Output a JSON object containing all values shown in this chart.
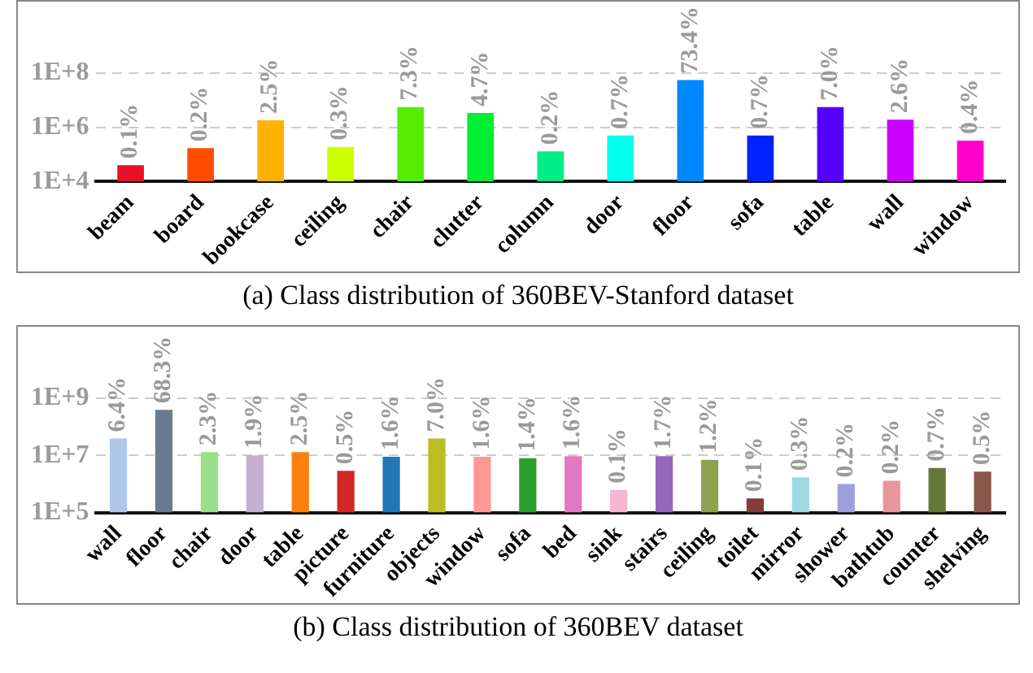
{
  "chart_data": [
    {
      "type": "bar",
      "title": "(a) Class distribution of 360BEV-Stanford dataset",
      "categories": [
        "beam",
        "board",
        "bookcase",
        "ceiling",
        "chair",
        "clutter",
        "column",
        "door",
        "floor",
        "sofa",
        "table",
        "wall",
        "window"
      ],
      "values": [
        40000,
        170000,
        1800000,
        190000,
        5600000,
        3400000,
        130000,
        500000,
        56000000,
        500000,
        5600000,
        1900000,
        320000
      ],
      "colors": [
        "#e8102a",
        "#ff4d00",
        "#ffb300",
        "#ccff00",
        "#55ee00",
        "#00ee33",
        "#00ee88",
        "#00ffee",
        "#0088ff",
        "#0022ff",
        "#5500ff",
        "#cc00ff",
        "#ff00cc"
      ],
      "annotations": [
        {
          "text": "0.1%",
          "x": "beam",
          "y": 40000
        },
        {
          "text": "0.2%",
          "x": "board",
          "y": 170000
        },
        {
          "text": "2.5%",
          "x": "bookcase",
          "y": 1800000
        },
        {
          "text": "0.3%",
          "x": "ceiling",
          "y": 190000
        },
        {
          "text": "7.3%",
          "x": "chair",
          "y": 5600000
        },
        {
          "text": "4.7%",
          "x": "clutter",
          "y": 3400000
        },
        {
          "text": "0.2%",
          "x": "column",
          "y": 130000
        },
        {
          "text": "0.7%",
          "x": "door",
          "y": 500000
        },
        {
          "text": "73.4%",
          "x": "floor",
          "y": 56000000
        },
        {
          "text": "0.7%",
          "x": "sofa",
          "y": 500000
        },
        {
          "text": "7.0%",
          "x": "table",
          "y": 5600000
        },
        {
          "text": "2.6%",
          "x": "wall",
          "y": 1900000
        },
        {
          "text": "0.4%",
          "x": "window",
          "y": 320000
        }
      ],
      "log": "y",
      "ylim": [
        10000,
        100000000
      ],
      "yticks": [
        {
          "value": 10000,
          "label": "1E+4"
        },
        {
          "value": 1000000,
          "label": "1E+6"
        },
        {
          "value": 100000000,
          "label": "1E+8"
        }
      ],
      "grid": "y",
      "legend": false
    },
    {
      "type": "bar",
      "title": "(b) Class distribution of 360BEV dataset",
      "categories": [
        "wall",
        "floor",
        "chair",
        "door",
        "table",
        "picture",
        "furniture",
        "objects",
        "window",
        "sofa",
        "bed",
        "sink",
        "stairs",
        "ceiling",
        "toilet",
        "mirror",
        "shower",
        "bathtub",
        "counter",
        "shelving"
      ],
      "values": [
        39000000,
        390000000,
        13000000,
        10000000,
        13000000,
        2900000,
        8900000,
        39000000,
        8900000,
        7900000,
        9400000,
        620000,
        9400000,
        7000000,
        310000,
        1700000,
        1000000,
        1300000,
        3600000,
        2700000
      ],
      "colors": [
        "#aec7e8",
        "#6a7b8f",
        "#98df8a",
        "#c5b0d5",
        "#ff7f0e",
        "#d62728",
        "#1f77b4",
        "#bcbd22",
        "#ff9896",
        "#2ca02c",
        "#e377c2",
        "#f7b6d2",
        "#9467bd",
        "#8ca252",
        "#843c39",
        "#9edae5",
        "#9c9ede",
        "#e7969c",
        "#637939",
        "#8c564b"
      ],
      "annotations": [
        {
          "text": "6.4%",
          "x": "wall",
          "y": 39000000
        },
        {
          "text": "68.3%",
          "x": "floor",
          "y": 390000000
        },
        {
          "text": "2.3%",
          "x": "chair",
          "y": 13000000
        },
        {
          "text": "1.9%",
          "x": "door",
          "y": 10000000
        },
        {
          "text": "2.5%",
          "x": "table",
          "y": 13000000
        },
        {
          "text": "0.5%",
          "x": "picture",
          "y": 2900000
        },
        {
          "text": "1.6%",
          "x": "furniture",
          "y": 8900000
        },
        {
          "text": "7.0%",
          "x": "objects",
          "y": 39000000
        },
        {
          "text": "1.6%",
          "x": "window",
          "y": 8900000
        },
        {
          "text": "1.4%",
          "x": "sofa",
          "y": 7900000
        },
        {
          "text": "1.6%",
          "x": "bed",
          "y": 9400000
        },
        {
          "text": "0.1%",
          "x": "sink",
          "y": 620000
        },
        {
          "text": "1.7%",
          "x": "stairs",
          "y": 9400000
        },
        {
          "text": "1.2%",
          "x": "ceiling",
          "y": 7000000
        },
        {
          "text": "0.1%",
          "x": "toilet",
          "y": 310000
        },
        {
          "text": "0.3%",
          "x": "mirror",
          "y": 1700000
        },
        {
          "text": "0.2%",
          "x": "shower",
          "y": 1000000
        },
        {
          "text": "0.2%",
          "x": "bathtub",
          "y": 1300000
        },
        {
          "text": "0.7%",
          "x": "counter",
          "y": 3600000
        },
        {
          "text": "0.5%",
          "x": "shelving",
          "y": 2700000
        }
      ],
      "log": "y",
      "ylim": [
        100000,
        1000000000
      ],
      "yticks": [
        {
          "value": 100000,
          "label": "1E+5"
        },
        {
          "value": 10000000,
          "label": "1E+7"
        },
        {
          "value": 1000000000,
          "label": "1E+9"
        }
      ],
      "grid": "y",
      "legend": false
    }
  ]
}
